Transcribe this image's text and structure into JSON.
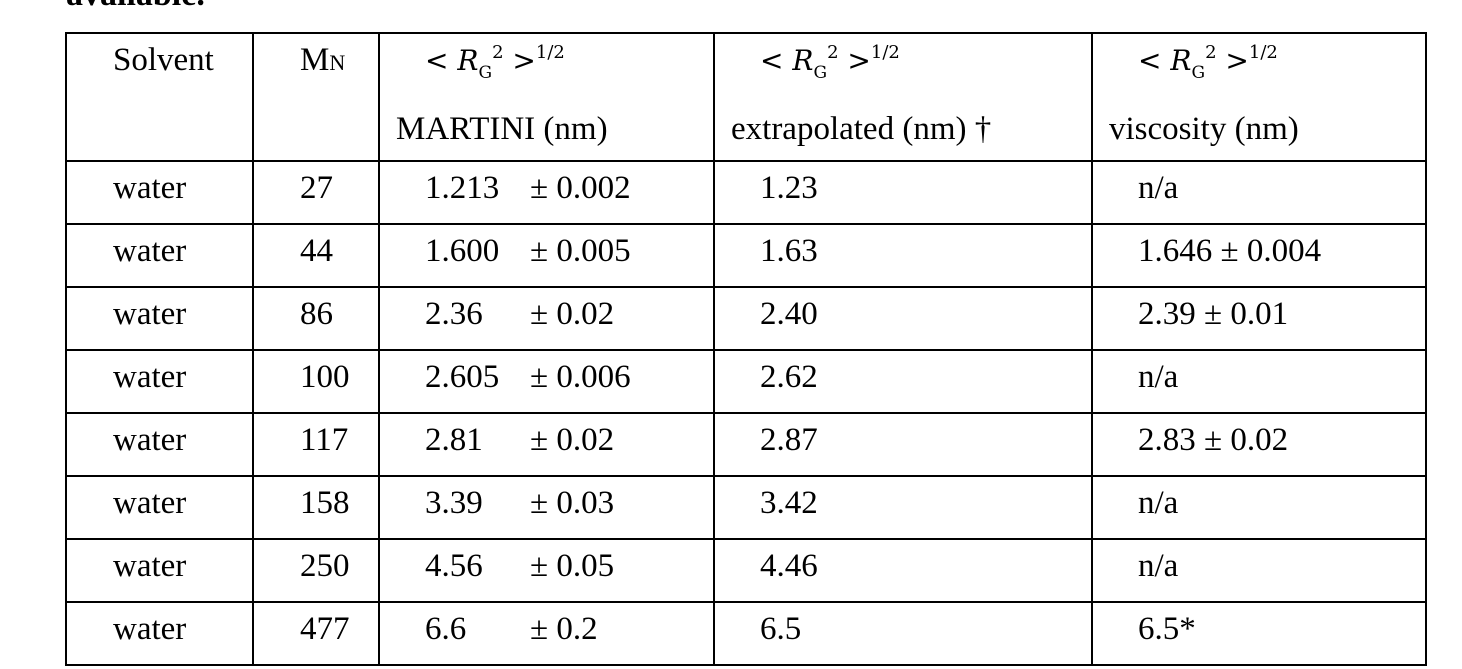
{
  "clipped_heading": "available.",
  "table": {
    "headers": {
      "solvent": "Solvent",
      "mn_main": "M",
      "mn_sub": "N",
      "rg_expr_lt": "< ",
      "rg_symbol": "R",
      "rg_sub": "G",
      "rg_sup": "2",
      "rg_expr_gt": " >",
      "rg_power": "1/2",
      "col3_unit": "MARTINI (nm)",
      "col4_unit": "extrapolated (nm) †",
      "col5_unit": "viscosity (nm)"
    },
    "rows": [
      {
        "solvent": "water",
        "mn": "27",
        "martini": "1.213",
        "martini_err": "± 0.002",
        "extrapolated": "1.23",
        "viscosity": "n/a"
      },
      {
        "solvent": "water",
        "mn": "44",
        "martini": "1.600",
        "martini_err": "± 0.005",
        "extrapolated": "1.63",
        "viscosity": "1.646 ± 0.004"
      },
      {
        "solvent": "water",
        "mn": "86",
        "martini": "2.36",
        "martini_err": "± 0.02",
        "extrapolated": "2.40",
        "viscosity": "2.39 ± 0.01"
      },
      {
        "solvent": "water",
        "mn": "100",
        "martini": "2.605",
        "martini_err": "± 0.006",
        "extrapolated": "2.62",
        "viscosity": "n/a"
      },
      {
        "solvent": "water",
        "mn": "117",
        "martini": "2.81",
        "martini_err": "± 0.02",
        "extrapolated": "2.87",
        "viscosity": "2.83 ± 0.02"
      },
      {
        "solvent": "water",
        "mn": "158",
        "martini": "3.39",
        "martini_err": "± 0.03",
        "extrapolated": "3.42",
        "viscosity": "n/a"
      },
      {
        "solvent": "water",
        "mn": "250",
        "martini": "4.56",
        "martini_err": "± 0.05",
        "extrapolated": "4.46",
        "viscosity": "n/a"
      },
      {
        "solvent": "water",
        "mn": "477",
        "martini": "6.6",
        "martini_err": "± 0.2",
        "extrapolated": "6.5",
        "viscosity": "6.5*"
      }
    ]
  }
}
